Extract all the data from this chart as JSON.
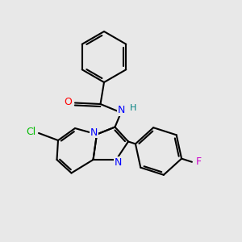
{
  "background_color": "#e8e8e8",
  "bond_color": "#000000",
  "atom_colors": {
    "O": "#ff0000",
    "N": "#0000ff",
    "Cl": "#00bb00",
    "F": "#cc00cc",
    "H": "#008080",
    "C": "#000000"
  },
  "figsize": [
    3.0,
    3.0
  ],
  "dpi": 100,
  "lw": 1.5,
  "fontsize": 9
}
